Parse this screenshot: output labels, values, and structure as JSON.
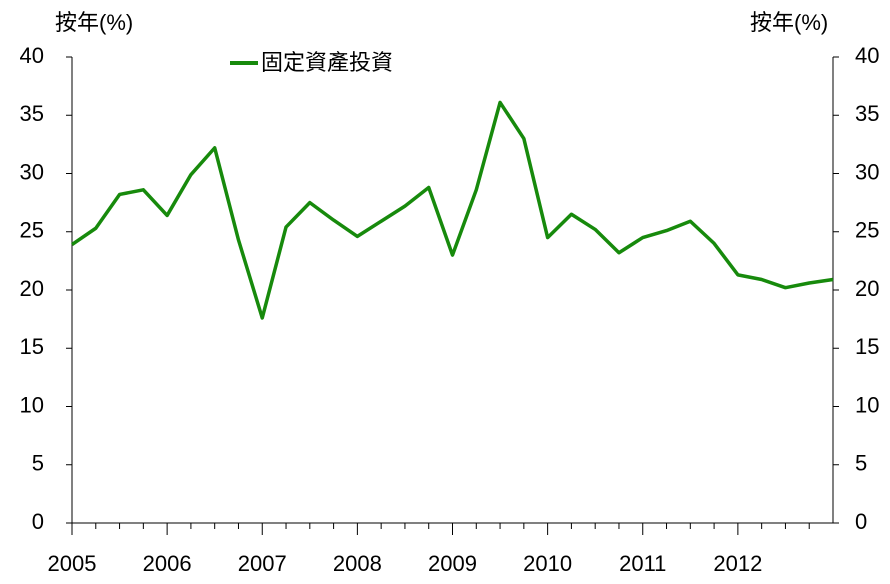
{
  "chart_data": {
    "type": "line",
    "y_label": "按年(%)",
    "y2_label": "按年(%)",
    "x": [
      2005,
      2005.25,
      2005.5,
      2005.75,
      2006,
      2006.25,
      2006.5,
      2006.75,
      2007,
      2007.25,
      2007.5,
      2007.75,
      2008,
      2008.25,
      2008.5,
      2008.75,
      2009,
      2009.25,
      2009.5,
      2009.75,
      2010,
      2010.25,
      2010.5,
      2010.75,
      2011,
      2011.25,
      2011.5,
      2011.75,
      2012,
      2012.25,
      2012.5,
      2012.75,
      2013
    ],
    "series": [
      {
        "name": "固定資產投資",
        "color": "#178a0c",
        "values": [
          23.9,
          25.3,
          28.2,
          28.6,
          26.4,
          29.9,
          32.2,
          24.3,
          17.6,
          25.4,
          27.5,
          26.0,
          24.6,
          25.9,
          27.2,
          28.8,
          23.0,
          28.6,
          36.1,
          33.0,
          24.5,
          26.5,
          25.2,
          23.2,
          24.5,
          25.1,
          25.9,
          24.0,
          21.3,
          20.9,
          20.2,
          20.6,
          20.9
        ]
      }
    ],
    "xlim": [
      2005,
      2013
    ],
    "xticks": [
      2005,
      2006,
      2007,
      2008,
      2009,
      2010,
      2011,
      2012
    ],
    "ylim": [
      0,
      40
    ],
    "yticks": [
      0,
      5,
      10,
      15,
      20,
      25,
      30,
      35,
      40
    ],
    "y2lim": [
      0,
      40
    ],
    "y2ticks": [
      0,
      5,
      10,
      15,
      20,
      25,
      30,
      35,
      40
    ],
    "legend": "top"
  }
}
